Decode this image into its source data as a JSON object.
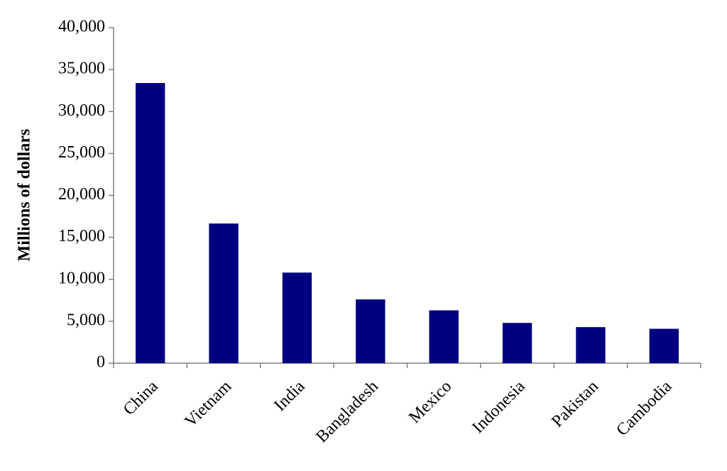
{
  "chart_data": {
    "type": "bar",
    "y_label": "Millions of dollars",
    "categories": [
      "China",
      "Vietnam",
      "India",
      "Bangladesh",
      "Mexico",
      "Indonesia",
      "Pakistan",
      "Cambodia"
    ],
    "values": [
      33400,
      16650,
      10800,
      7600,
      6300,
      4800,
      4300,
      4100
    ],
    "color": "#000080",
    "ylim": [
      0,
      40000
    ],
    "yticks": [
      0,
      {
        "value": 5000,
        "label": "5,000"
      },
      {
        "value": 10000,
        "label": "10,000"
      },
      {
        "value": 15000,
        "label": "15,000"
      },
      {
        "value": 20000,
        "label": "20,000"
      },
      {
        "value": 25000,
        "label": "25,000"
      },
      {
        "value": 30000,
        "label": "30,000"
      },
      {
        "value": 35000,
        "label": "35,000"
      },
      {
        "value": 40000,
        "label": "40,000"
      }
    ],
    "grid": false
  }
}
